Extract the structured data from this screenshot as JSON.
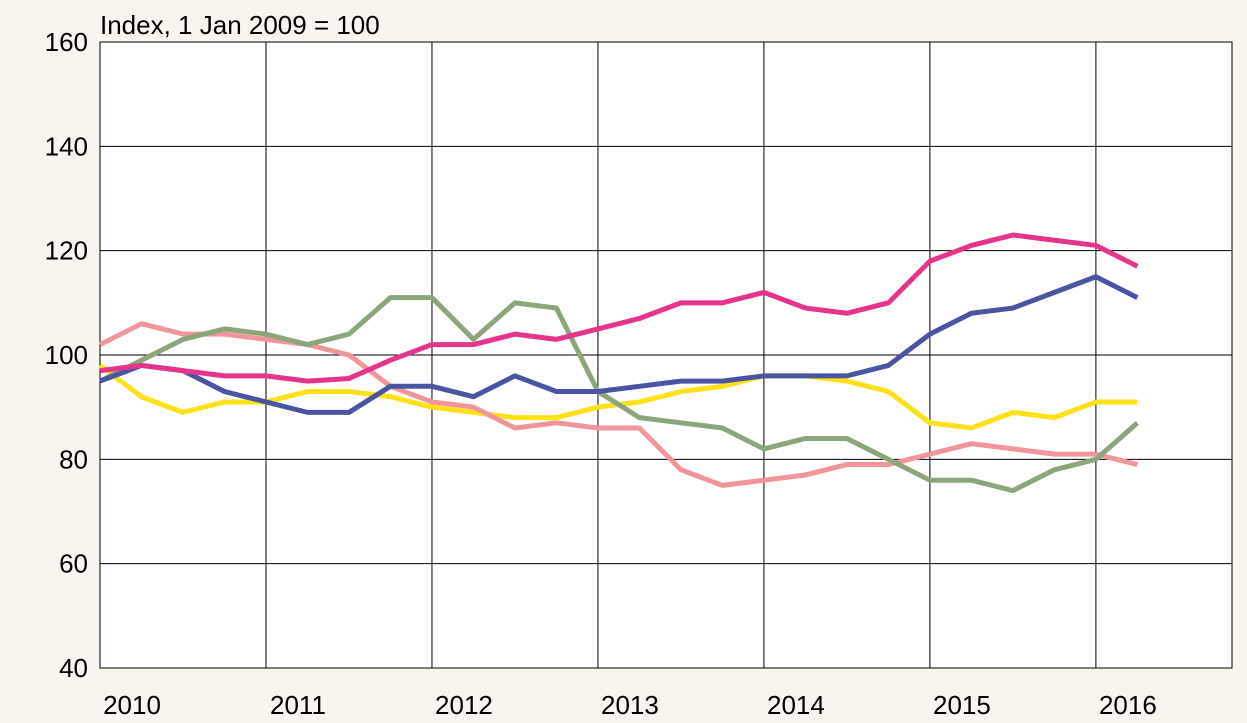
{
  "chart_data": {
    "type": "line",
    "title": "Index, 1 Jan 2009 = 100",
    "x": [
      2010.0,
      2010.25,
      2010.5,
      2010.75,
      2011.0,
      2011.25,
      2011.5,
      2011.75,
      2012.0,
      2012.25,
      2012.5,
      2012.75,
      2013.0,
      2013.25,
      2013.5,
      2013.75,
      2014.0,
      2014.25,
      2014.5,
      2014.75,
      2015.0,
      2015.25,
      2015.5,
      2015.75,
      2016.0,
      2016.25
    ],
    "series": [
      {
        "color": "#ffe11a",
        "values": [
          98,
          92,
          89,
          91,
          91,
          93,
          93,
          92,
          90,
          89,
          88,
          88,
          90,
          91,
          93,
          94,
          96,
          96,
          95,
          93,
          87,
          86,
          89,
          88,
          91,
          91
        ]
      },
      {
        "color": "#f0969a",
        "values": [
          102,
          106,
          104,
          104,
          103,
          102,
          100,
          94,
          91,
          90,
          86,
          87,
          86,
          86,
          78,
          75,
          76,
          77,
          79,
          79,
          81,
          83,
          82,
          81,
          81,
          79
        ]
      },
      {
        "color": "#8aa67a",
        "values": [
          95,
          99,
          103,
          105,
          104,
          102,
          104,
          111,
          111,
          103,
          110,
          109,
          93,
          88,
          87,
          86,
          82,
          84,
          84,
          80,
          76,
          76,
          74,
          78,
          80,
          87
        ]
      },
      {
        "color": "#4a55a2",
        "values": [
          95,
          98,
          97,
          93,
          91,
          89,
          89,
          94,
          94,
          92,
          96,
          93,
          93,
          94,
          95,
          95,
          96,
          96,
          96,
          98,
          104,
          108,
          109,
          112,
          115,
          111
        ]
      },
      {
        "color": "#e6348c",
        "values": [
          97,
          98,
          97,
          96,
          96,
          95,
          95.5,
          99,
          102,
          102,
          104,
          103,
          105,
          107,
          110,
          110,
          112,
          109,
          108,
          110,
          118,
          121,
          123,
          122,
          121,
          117
        ]
      }
    ],
    "xlim": [
      2010,
      2016.82
    ],
    "xticks": [
      2010,
      2011,
      2012,
      2013,
      2014,
      2015,
      2016
    ],
    "ylim": [
      40,
      160
    ],
    "yticks": [
      40,
      60,
      80,
      100,
      120,
      140,
      160
    ],
    "grid": true
  }
}
